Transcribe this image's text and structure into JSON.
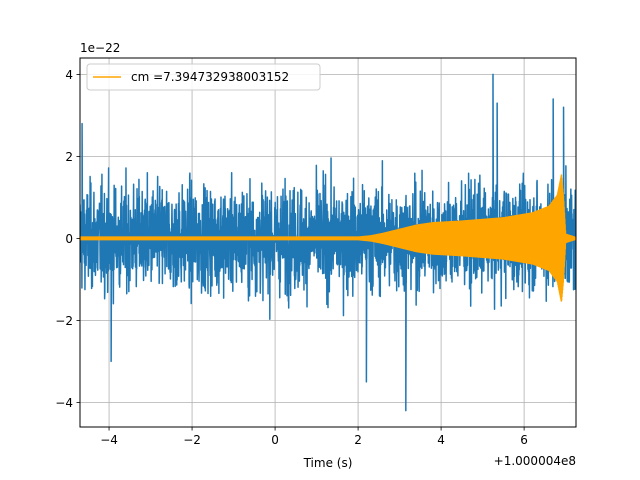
{
  "chart_data": {
    "type": "line",
    "xlabel": "Time (s)",
    "ylabel": "",
    "x_offset_label": "+1.000004e8",
    "y_scale_label": "1e−22",
    "xlim": [
      -4.7,
      7.25
    ],
    "ylim": [
      -4.6,
      4.4
    ],
    "x_ticks": [
      -4,
      -2,
      0,
      2,
      4,
      6
    ],
    "y_ticks": [
      -4,
      -2,
      0,
      2,
      4
    ],
    "x_tick_labels": [
      "−4",
      "−2",
      "0",
      "2",
      "4",
      "6"
    ],
    "y_tick_labels": [
      "−4",
      "−2",
      "0",
      "2",
      "4"
    ],
    "grid": true,
    "legend_position": "top-left",
    "legend": [
      "cm =7.394732938003152"
    ],
    "series": [
      {
        "name": "",
        "role": "strain noise",
        "color": "#1f77b4",
        "typical_amplitude": 1.6,
        "peak_values": [
          {
            "x": -4.65,
            "y": 2.8
          },
          {
            "x": 3.15,
            "y": -4.2
          },
          {
            "x": 5.25,
            "y": 4.0
          },
          {
            "x": 5.35,
            "y": 3.3
          },
          {
            "x": 6.7,
            "y": 3.4
          },
          {
            "x": 6.95,
            "y": 3.2
          },
          {
            "x": 2.2,
            "y": -3.5
          },
          {
            "x": -3.95,
            "y": -3.0
          }
        ]
      },
      {
        "name": "cm =7.394732938003152",
        "role": "template",
        "color": "#ffa500",
        "envelope": [
          {
            "x": -4.7,
            "y": 0.03
          },
          {
            "x": 2.0,
            "y": 0.03
          },
          {
            "x": 2.3,
            "y": 0.06
          },
          {
            "x": 2.6,
            "y": 0.12
          },
          {
            "x": 3.0,
            "y": 0.22
          },
          {
            "x": 3.4,
            "y": 0.32
          },
          {
            "x": 3.8,
            "y": 0.38
          },
          {
            "x": 4.5,
            "y": 0.42
          },
          {
            "x": 5.5,
            "y": 0.5
          },
          {
            "x": 6.2,
            "y": 0.62
          },
          {
            "x": 6.6,
            "y": 0.78
          },
          {
            "x": 6.8,
            "y": 1.05
          },
          {
            "x": 6.9,
            "y": 1.55
          },
          {
            "x": 6.95,
            "y": 1.0
          },
          {
            "x": 7.0,
            "y": 0.1
          },
          {
            "x": 7.25,
            "y": 0.02
          }
        ]
      }
    ]
  }
}
